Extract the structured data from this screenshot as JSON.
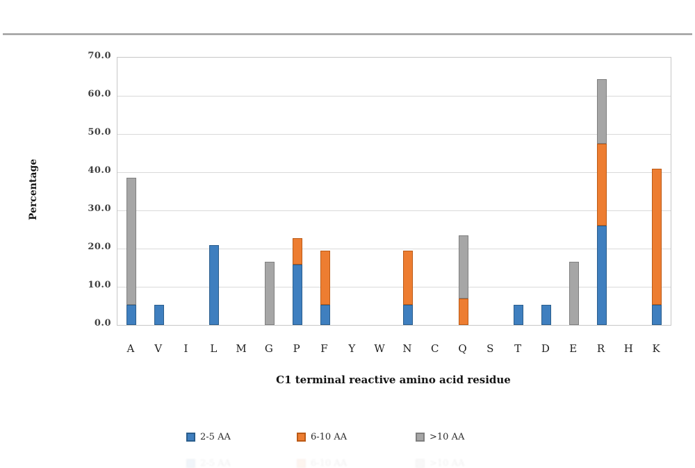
{
  "divider": {
    "present": true
  },
  "chart_data": {
    "type": "bar",
    "stacked": true,
    "title": "",
    "xlabel": "C1 terminal reactive amino acid residue",
    "ylabel": "Percentage",
    "ylim": [
      0,
      70
    ],
    "yticks": [
      "70.0",
      "60.0",
      "50.0",
      "40.0",
      "30.0",
      "20.0",
      "10.0",
      "0.0"
    ],
    "grid": true,
    "legend_position": "bottom",
    "categories": [
      "A",
      "V",
      "I",
      "L",
      "M",
      "G",
      "P",
      "F",
      "Y",
      "W",
      "N",
      "C",
      "Q",
      "S",
      "T",
      "D",
      "E",
      "R",
      "H",
      "K"
    ],
    "series": [
      {
        "name": "2-5 AA",
        "color": "#3f7fbf",
        "border_color": "#2a5d8c",
        "values": [
          5.3,
          5.3,
          0,
          21.0,
          0,
          0,
          15.8,
          5.3,
          0,
          0,
          5.3,
          0,
          0,
          0,
          5.3,
          5.3,
          0,
          26.0,
          0,
          5.3
        ]
      },
      {
        "name": "6-10 AA",
        "color": "#ed7d31",
        "border_color": "#bb5a16",
        "values": [
          0,
          0,
          0,
          0,
          0,
          0,
          7.0,
          14.2,
          0,
          0,
          14.2,
          0,
          7.0,
          0,
          0,
          0,
          0,
          21.5,
          0,
          35.7
        ]
      },
      {
        "name": ">10 AA",
        "color": "#a6a6a6",
        "border_color": "#7f7f7f",
        "values": [
          33.2,
          0,
          0,
          0,
          0,
          16.5,
          0,
          0,
          0,
          0,
          0,
          0,
          16.5,
          0,
          0,
          0,
          16.5,
          16.8,
          0,
          0
        ]
      }
    ]
  }
}
